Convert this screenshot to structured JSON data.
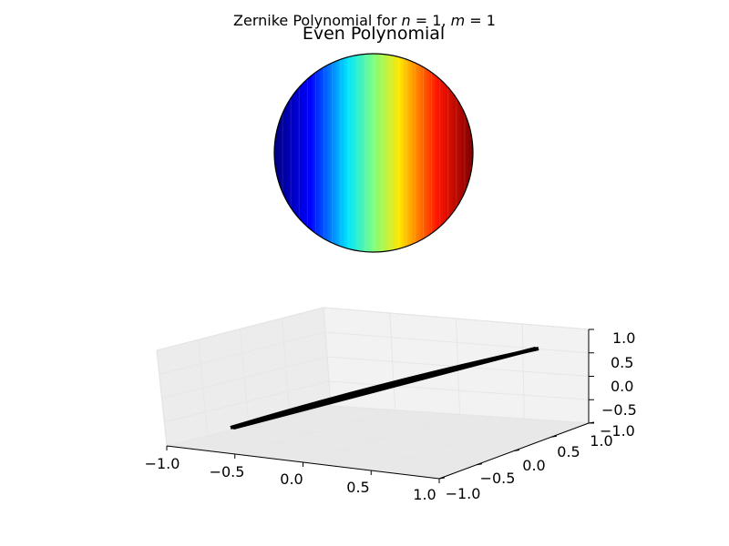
{
  "figure": {
    "suptitle_prefix": "Zernike Polynomial for ",
    "suptitle_n": "n",
    "suptitle_m": "m",
    "suptitle_eq": " = 1, ",
    "suptitle_eq2": " = 1"
  },
  "chart_data": [
    {
      "type": "heatmap",
      "title": "Even Polynomial",
      "colormap": "jet",
      "domain": "unit disk",
      "description_value": "Z = x (linear tilt along x)",
      "x_range": [
        -1,
        1
      ],
      "value_range": [
        -1,
        1
      ],
      "colormap_stops": [
        "#00007f",
        "#0000ff",
        "#00ffff",
        "#7fff7f",
        "#ffff00",
        "#ff0000",
        "#7f0000"
      ]
    },
    {
      "type": "line",
      "projection": "3d",
      "title": "",
      "x_ticks": [
        "−1.0",
        "−0.5",
        "0.0",
        "0.5",
        "1.0"
      ],
      "y_ticks": [
        "−1.0",
        "−0.5",
        "0.0",
        "0.5",
        "1.0"
      ],
      "z_ticks": [
        "−1.0",
        "−0.5",
        "0.0",
        "0.5",
        "1.0"
      ],
      "xlim": [
        -1,
        1
      ],
      "ylim": [
        -1,
        1
      ],
      "zlim": [
        -1,
        1
      ],
      "surface": "z = x over unit disk",
      "surface_color": "#000000"
    }
  ]
}
